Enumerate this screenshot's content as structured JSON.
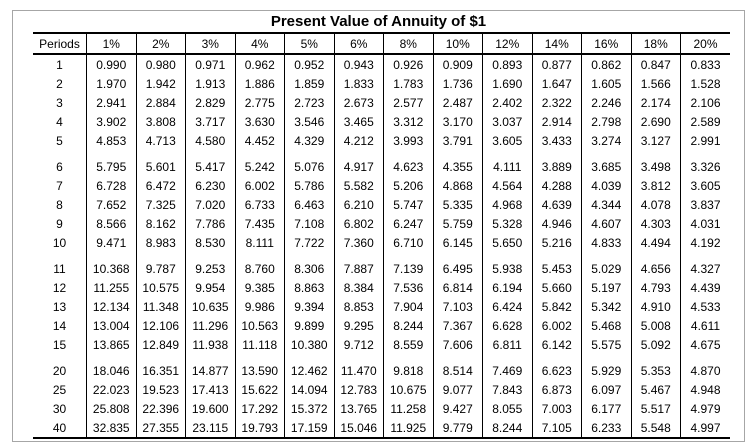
{
  "sheet": {
    "title": "Present Value of Annuity of $1"
  },
  "colors": {
    "outer_border": "#a6a6a6",
    "table_border": "#000000",
    "text": "#000000",
    "background": "#ffffff"
  },
  "chart_data": {
    "type": "table",
    "title": "Present Value of Annuity of $1",
    "columns": [
      "Periods",
      "1%",
      "2%",
      "3%",
      "4%",
      "5%",
      "6%",
      "8%",
      "10%",
      "12%",
      "14%",
      "16%",
      "18%",
      "20%"
    ],
    "row_groups": [
      [
        [
          "1",
          "0.990",
          "0.980",
          "0.971",
          "0.962",
          "0.952",
          "0.943",
          "0.926",
          "0.909",
          "0.893",
          "0.877",
          "0.862",
          "0.847",
          "0.833"
        ],
        [
          "2",
          "1.970",
          "1.942",
          "1.913",
          "1.886",
          "1.859",
          "1.833",
          "1.783",
          "1.736",
          "1.690",
          "1.647",
          "1.605",
          "1.566",
          "1.528"
        ],
        [
          "3",
          "2.941",
          "2.884",
          "2.829",
          "2.775",
          "2.723",
          "2.673",
          "2.577",
          "2.487",
          "2.402",
          "2.322",
          "2.246",
          "2.174",
          "2.106"
        ],
        [
          "4",
          "3.902",
          "3.808",
          "3.717",
          "3.630",
          "3.546",
          "3.465",
          "3.312",
          "3.170",
          "3.037",
          "2.914",
          "2.798",
          "2.690",
          "2.589"
        ],
        [
          "5",
          "4.853",
          "4.713",
          "4.580",
          "4.452",
          "4.329",
          "4.212",
          "3.993",
          "3.791",
          "3.605",
          "3.433",
          "3.274",
          "3.127",
          "2.991"
        ]
      ],
      [
        [
          "6",
          "5.795",
          "5.601",
          "5.417",
          "5.242",
          "5.076",
          "4.917",
          "4.623",
          "4.355",
          "4.111",
          "3.889",
          "3.685",
          "3.498",
          "3.326"
        ],
        [
          "7",
          "6.728",
          "6.472",
          "6.230",
          "6.002",
          "5.786",
          "5.582",
          "5.206",
          "4.868",
          "4.564",
          "4.288",
          "4.039",
          "3.812",
          "3.605"
        ],
        [
          "8",
          "7.652",
          "7.325",
          "7.020",
          "6.733",
          "6.463",
          "6.210",
          "5.747",
          "5.335",
          "4.968",
          "4.639",
          "4.344",
          "4.078",
          "3.837"
        ],
        [
          "9",
          "8.566",
          "8.162",
          "7.786",
          "7.435",
          "7.108",
          "6.802",
          "6.247",
          "5.759",
          "5.328",
          "4.946",
          "4.607",
          "4.303",
          "4.031"
        ],
        [
          "10",
          "9.471",
          "8.983",
          "8.530",
          "8.111",
          "7.722",
          "7.360",
          "6.710",
          "6.145",
          "5.650",
          "5.216",
          "4.833",
          "4.494",
          "4.192"
        ]
      ],
      [
        [
          "11",
          "10.368",
          "9.787",
          "9.253",
          "8.760",
          "8.306",
          "7.887",
          "7.139",
          "6.495",
          "5.938",
          "5.453",
          "5.029",
          "4.656",
          "4.327"
        ],
        [
          "12",
          "11.255",
          "10.575",
          "9.954",
          "9.385",
          "8.863",
          "8.384",
          "7.536",
          "6.814",
          "6.194",
          "5.660",
          "5.197",
          "4.793",
          "4.439"
        ],
        [
          "13",
          "12.134",
          "11.348",
          "10.635",
          "9.986",
          "9.394",
          "8.853",
          "7.904",
          "7.103",
          "6.424",
          "5.842",
          "5.342",
          "4.910",
          "4.533"
        ],
        [
          "14",
          "13.004",
          "12.106",
          "11.296",
          "10.563",
          "9.899",
          "9.295",
          "8.244",
          "7.367",
          "6.628",
          "6.002",
          "5.468",
          "5.008",
          "4.611"
        ],
        [
          "15",
          "13.865",
          "12.849",
          "11.938",
          "11.118",
          "10.380",
          "9.712",
          "8.559",
          "7.606",
          "6.811",
          "6.142",
          "5.575",
          "5.092",
          "4.675"
        ]
      ],
      [
        [
          "20",
          "18.046",
          "16.351",
          "14.877",
          "13.590",
          "12.462",
          "11.470",
          "9.818",
          "8.514",
          "7.469",
          "6.623",
          "5.929",
          "5.353",
          "4.870"
        ],
        [
          "25",
          "22.023",
          "19.523",
          "17.413",
          "15.622",
          "14.094",
          "12.783",
          "10.675",
          "9.077",
          "7.843",
          "6.873",
          "6.097",
          "5.467",
          "4.948"
        ],
        [
          "30",
          "25.808",
          "22.396",
          "19.600",
          "17.292",
          "15.372",
          "13.765",
          "11.258",
          "9.427",
          "8.055",
          "7.003",
          "6.177",
          "5.517",
          "4.979"
        ],
        [
          "40",
          "32.835",
          "27.355",
          "23.115",
          "19.793",
          "17.159",
          "15.046",
          "11.925",
          "9.779",
          "8.244",
          "7.105",
          "6.233",
          "5.548",
          "4.997"
        ]
      ]
    ]
  }
}
